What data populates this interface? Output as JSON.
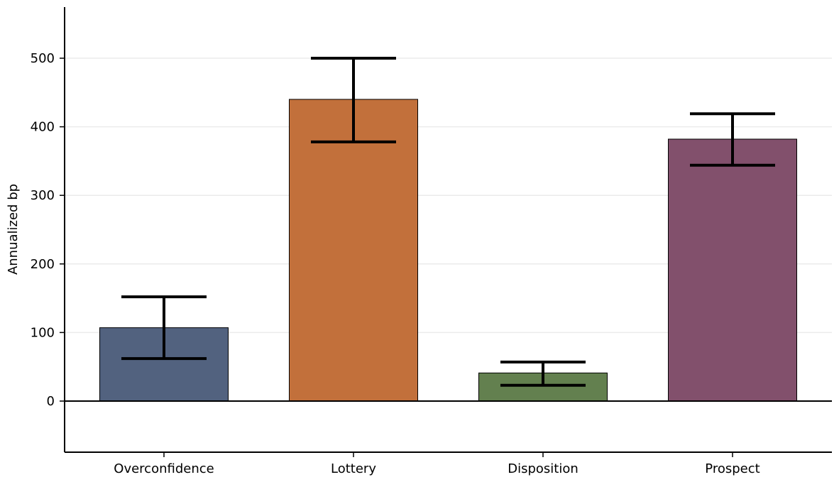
{
  "chart_data": {
    "type": "bar",
    "categories": [
      "Overconfidence",
      "Lottery",
      "Disposition",
      "Prospect"
    ],
    "values": [
      107,
      440,
      41,
      382
    ],
    "error_low": [
      62,
      378,
      23,
      344
    ],
    "error_high": [
      152,
      500,
      57,
      419
    ],
    "colors": [
      "#52627f",
      "#c2703b",
      "#63804f",
      "#82506c"
    ],
    "ylabel": "Annualized bp",
    "xlabel": "",
    "ylim": [
      -75,
      575
    ],
    "yticks": [
      0,
      100,
      200,
      300,
      400,
      500
    ],
    "grid": "horizontal"
  }
}
